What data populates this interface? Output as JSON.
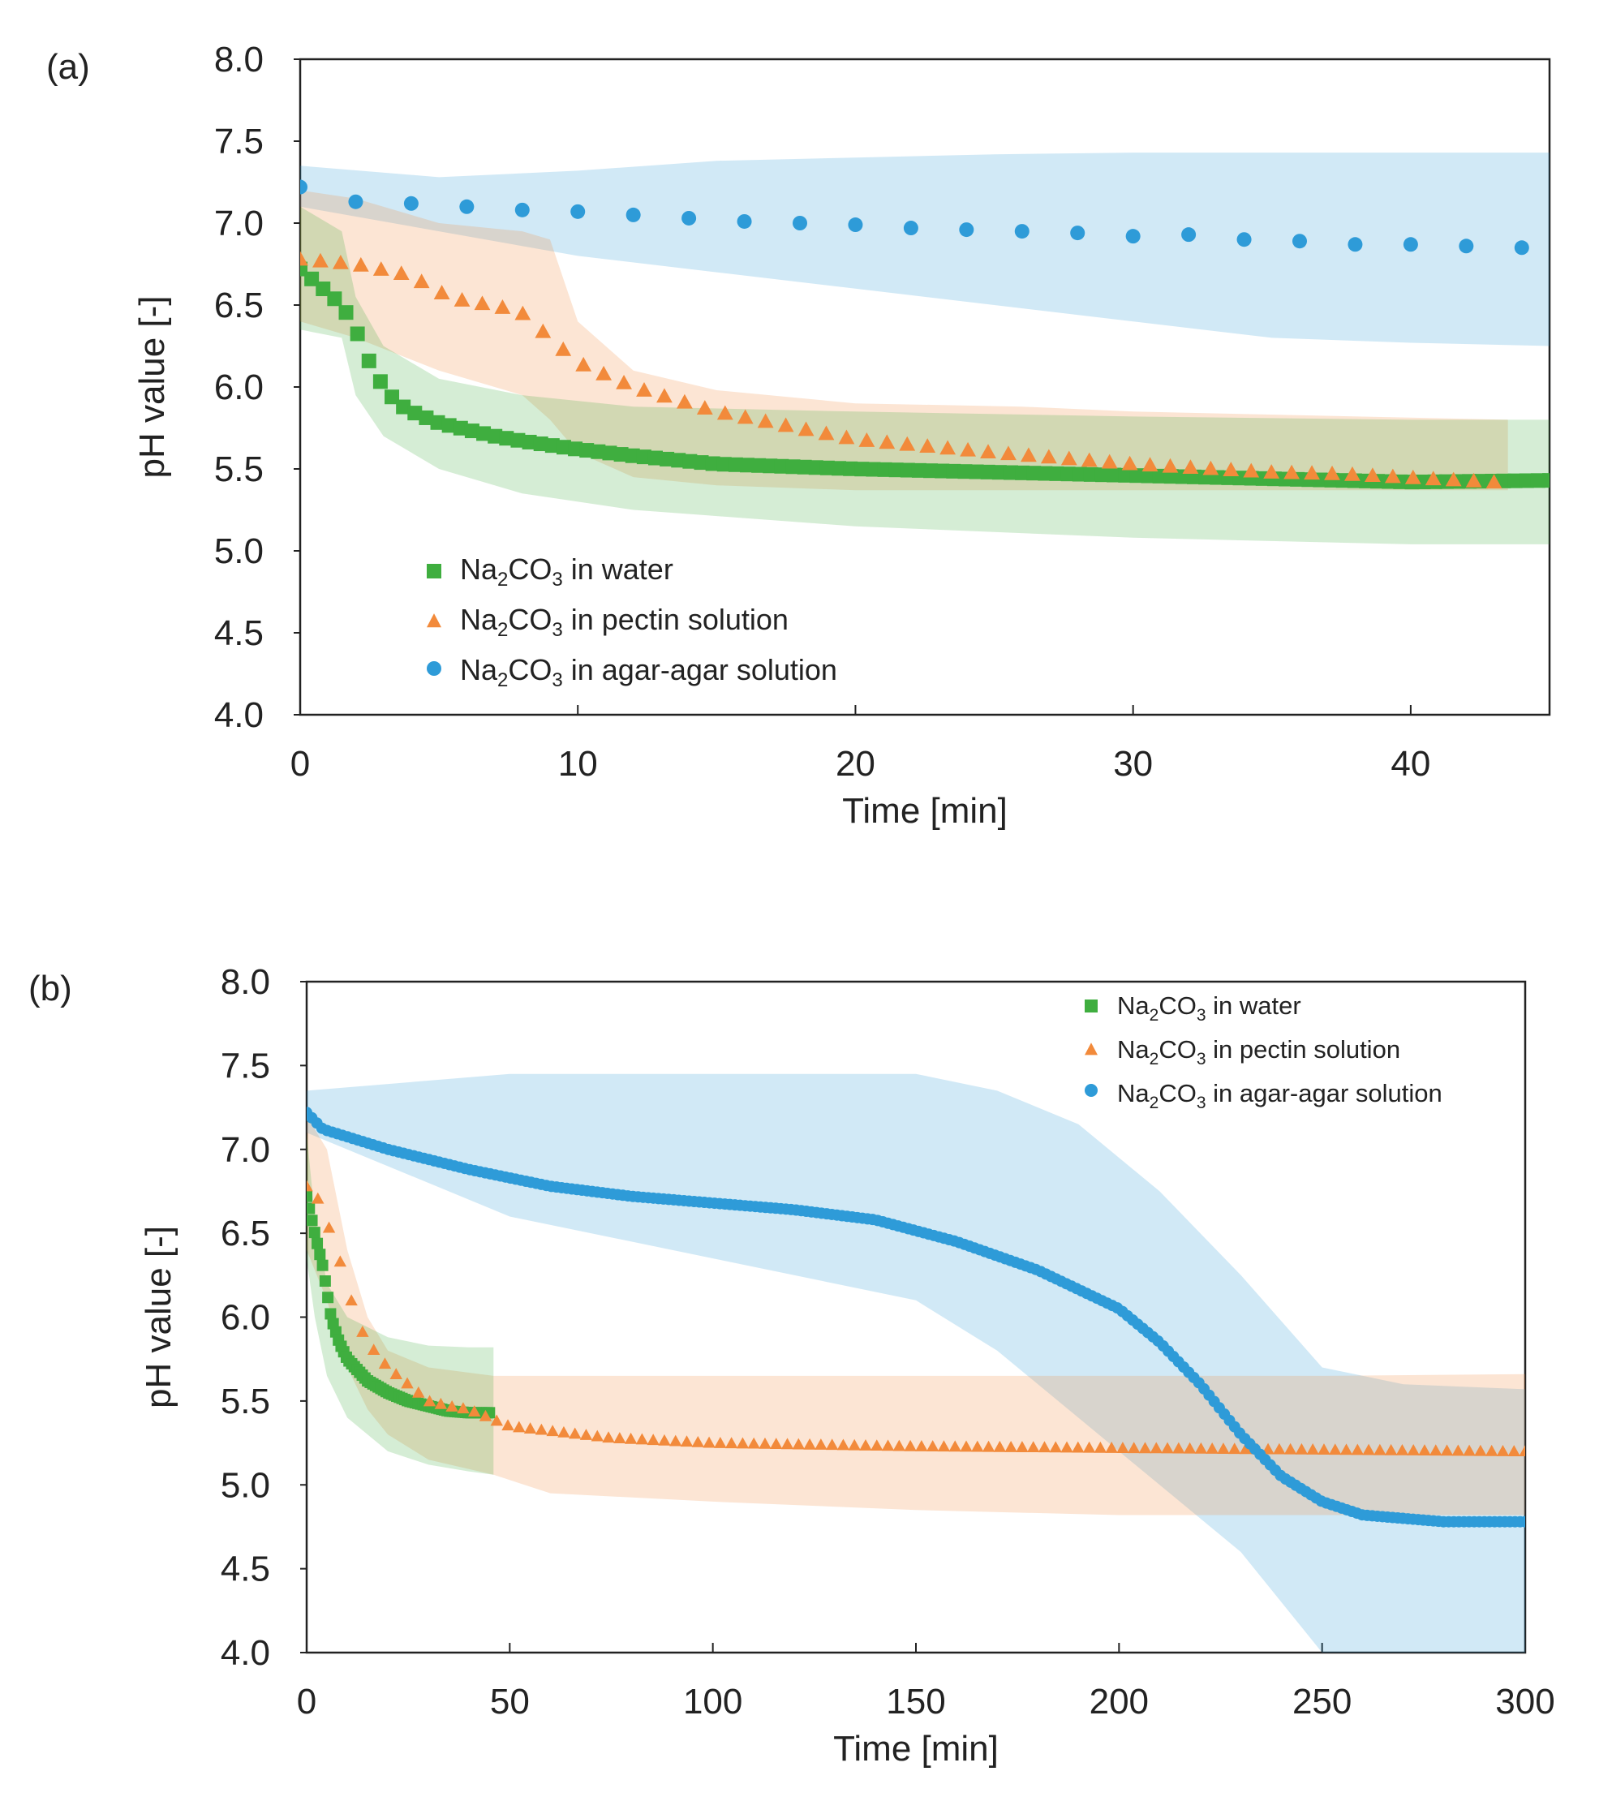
{
  "chart_data": [
    {
      "panel_label": "(a)",
      "type": "scatter",
      "xlabel": "Time [min]",
      "ylabel": "pH value [-]",
      "xlim": [
        0,
        45
      ],
      "ylim": [
        4.0,
        8.0
      ],
      "xticks": [
        "0",
        "10",
        "20",
        "30",
        "40"
      ],
      "yticks": [
        "4.0",
        "4.5",
        "5.0",
        "5.5",
        "6.0",
        "6.5",
        "7.0",
        "7.5",
        "8.0"
      ],
      "legend": "lower-left",
      "series": [
        {
          "name": "Na2CO3 in water",
          "legend_label": "in water",
          "color": "#3fae3f",
          "marker": "square",
          "x": [
            0,
            1.5,
            2,
            2.5,
            3,
            3.5,
            4,
            5,
            6,
            7,
            8,
            10,
            12,
            15,
            20,
            25,
            30,
            35,
            40,
            45
          ],
          "y": [
            6.72,
            6.5,
            6.35,
            6.15,
            6.0,
            5.9,
            5.85,
            5.78,
            5.74,
            5.7,
            5.67,
            5.62,
            5.58,
            5.53,
            5.5,
            5.48,
            5.46,
            5.44,
            5.42,
            5.43
          ],
          "band_x": [
            0,
            1.5,
            2,
            3,
            5,
            8,
            12,
            20,
            30,
            40,
            45
          ],
          "band_lower": [
            6.35,
            6.3,
            5.95,
            5.7,
            5.5,
            5.35,
            5.25,
            5.15,
            5.08,
            5.04,
            5.04
          ],
          "band_upper": [
            7.1,
            6.95,
            6.55,
            6.25,
            6.05,
            5.95,
            5.88,
            5.85,
            5.82,
            5.8,
            5.8
          ]
        },
        {
          "name": "Na2CO3 in pectin solution",
          "legend_label": "in pectin solution",
          "color": "#f28a3b",
          "marker": "triangle",
          "x": [
            0,
            2,
            4,
            5,
            6,
            7,
            8,
            9,
            10,
            12,
            15,
            20,
            25,
            30,
            35,
            37.5,
            43
          ],
          "y": [
            6.78,
            6.75,
            6.68,
            6.58,
            6.52,
            6.5,
            6.45,
            6.3,
            6.15,
            6.0,
            5.85,
            5.68,
            5.6,
            5.53,
            5.48,
            5.47,
            5.42
          ],
          "band_x": [
            0,
            2,
            5,
            8,
            9,
            10,
            12,
            15,
            20,
            26,
            30,
            43.5
          ],
          "band_lower": [
            6.4,
            6.3,
            6.1,
            5.95,
            5.8,
            5.6,
            5.45,
            5.4,
            5.37,
            5.37,
            5.37,
            5.37
          ],
          "band_upper": [
            7.2,
            7.15,
            7.0,
            6.95,
            6.9,
            6.4,
            6.1,
            5.98,
            5.9,
            5.88,
            5.85,
            5.8
          ]
        },
        {
          "name": "Na2CO3 in agar-agar solution",
          "legend_label": "in agar-agar solution",
          "color": "#2e9bd8",
          "marker": "circle",
          "x": [
            0,
            2,
            4,
            6,
            8,
            10,
            12,
            14,
            16,
            18,
            20,
            22,
            24,
            26,
            28,
            30,
            32,
            34,
            36,
            38,
            40,
            42,
            44
          ],
          "y": [
            7.22,
            7.13,
            7.12,
            7.1,
            7.08,
            7.07,
            7.05,
            7.03,
            7.01,
            7.0,
            6.99,
            6.97,
            6.96,
            6.95,
            6.94,
            6.92,
            6.93,
            6.9,
            6.89,
            6.87,
            6.87,
            6.86,
            6.85
          ],
          "band_x": [
            0,
            5,
            10,
            15,
            20,
            25,
            30,
            35,
            40,
            45
          ],
          "band_lower": [
            7.1,
            6.95,
            6.8,
            6.7,
            6.6,
            6.5,
            6.4,
            6.3,
            6.27,
            6.25
          ],
          "band_upper": [
            7.35,
            7.28,
            7.32,
            7.38,
            7.4,
            7.42,
            7.43,
            7.43,
            7.43,
            7.43
          ]
        }
      ]
    },
    {
      "panel_label": "(b)",
      "type": "scatter",
      "xlabel": "Time [min]",
      "ylabel": "pH value [-]",
      "xlim": [
        0,
        300
      ],
      "ylim": [
        4.0,
        8.0
      ],
      "xticks": [
        "0",
        "50",
        "100",
        "150",
        "200",
        "250",
        "300"
      ],
      "yticks": [
        "4.0",
        "4.5",
        "5.0",
        "5.5",
        "6.0",
        "6.5",
        "7.0",
        "7.5",
        "8.0"
      ],
      "legend": "top-right",
      "series": [
        {
          "name": "Na2CO3 in water",
          "legend_label": "in water",
          "color": "#3fae3f",
          "marker": "square",
          "x": [
            0,
            2,
            4,
            6,
            8,
            10,
            15,
            20,
            25,
            30,
            35,
            40,
            45
          ],
          "y": [
            6.72,
            6.5,
            6.3,
            6.0,
            5.85,
            5.75,
            5.62,
            5.55,
            5.5,
            5.47,
            5.44,
            5.43,
            5.43
          ],
          "band_x": [
            0,
            2,
            5,
            10,
            20,
            30,
            40,
            46
          ],
          "band_lower": [
            6.35,
            6.0,
            5.65,
            5.4,
            5.2,
            5.12,
            5.08,
            5.06
          ],
          "band_upper": [
            7.1,
            6.6,
            6.2,
            6.0,
            5.88,
            5.83,
            5.82,
            5.82
          ]
        },
        {
          "name": "Na2CO3 in pectin solution",
          "legend_label": "in pectin solution",
          "color": "#f28a3b",
          "marker": "triangle",
          "x": [
            0,
            3,
            6,
            8,
            10,
            12,
            15,
            20,
            25,
            30,
            35,
            40,
            50,
            75,
            100,
            150,
            200,
            250,
            300
          ],
          "y": [
            6.78,
            6.7,
            6.5,
            6.35,
            6.2,
            6.0,
            5.85,
            5.7,
            5.6,
            5.5,
            5.47,
            5.45,
            5.35,
            5.28,
            5.25,
            5.23,
            5.22,
            5.21,
            5.2
          ],
          "band_x": [
            0,
            5,
            10,
            15,
            20,
            30,
            46,
            60,
            100,
            150,
            200,
            250,
            300
          ],
          "band_lower": [
            6.4,
            6.1,
            5.7,
            5.45,
            5.3,
            5.15,
            5.06,
            4.95,
            4.9,
            4.85,
            4.82,
            4.82,
            4.82
          ],
          "band_upper": [
            7.2,
            7.0,
            6.4,
            6.0,
            5.8,
            5.7,
            5.65,
            5.65,
            5.65,
            5.65,
            5.65,
            5.65,
            5.66
          ]
        },
        {
          "name": "Na2CO3 in agar-agar solution",
          "legend_label": "in agar-agar solution",
          "color": "#2e9bd8",
          "marker": "circle",
          "x": [
            0,
            4,
            20,
            40,
            60,
            80,
            100,
            120,
            140,
            160,
            180,
            200,
            210,
            220,
            230,
            240,
            250,
            260,
            270,
            280,
            290,
            300
          ],
          "y": [
            7.22,
            7.12,
            7.0,
            6.88,
            6.78,
            6.72,
            6.68,
            6.64,
            6.58,
            6.45,
            6.28,
            6.05,
            5.85,
            5.6,
            5.3,
            5.05,
            4.9,
            4.82,
            4.8,
            4.78,
            4.78,
            4.78
          ],
          "band_x": [
            0,
            50,
            100,
            150,
            170,
            190,
            210,
            230,
            250,
            270,
            300
          ],
          "band_lower": [
            7.1,
            6.6,
            6.35,
            6.1,
            5.8,
            5.4,
            5.0,
            4.6,
            4.0,
            4.0,
            4.0
          ],
          "band_upper": [
            7.35,
            7.45,
            7.45,
            7.45,
            7.35,
            7.15,
            6.75,
            6.25,
            5.7,
            5.6,
            5.57
          ]
        }
      ]
    }
  ],
  "legend_prefix": {
    "base": "Na",
    "sub1": "2",
    "mid": "CO",
    "sub2": "3"
  }
}
